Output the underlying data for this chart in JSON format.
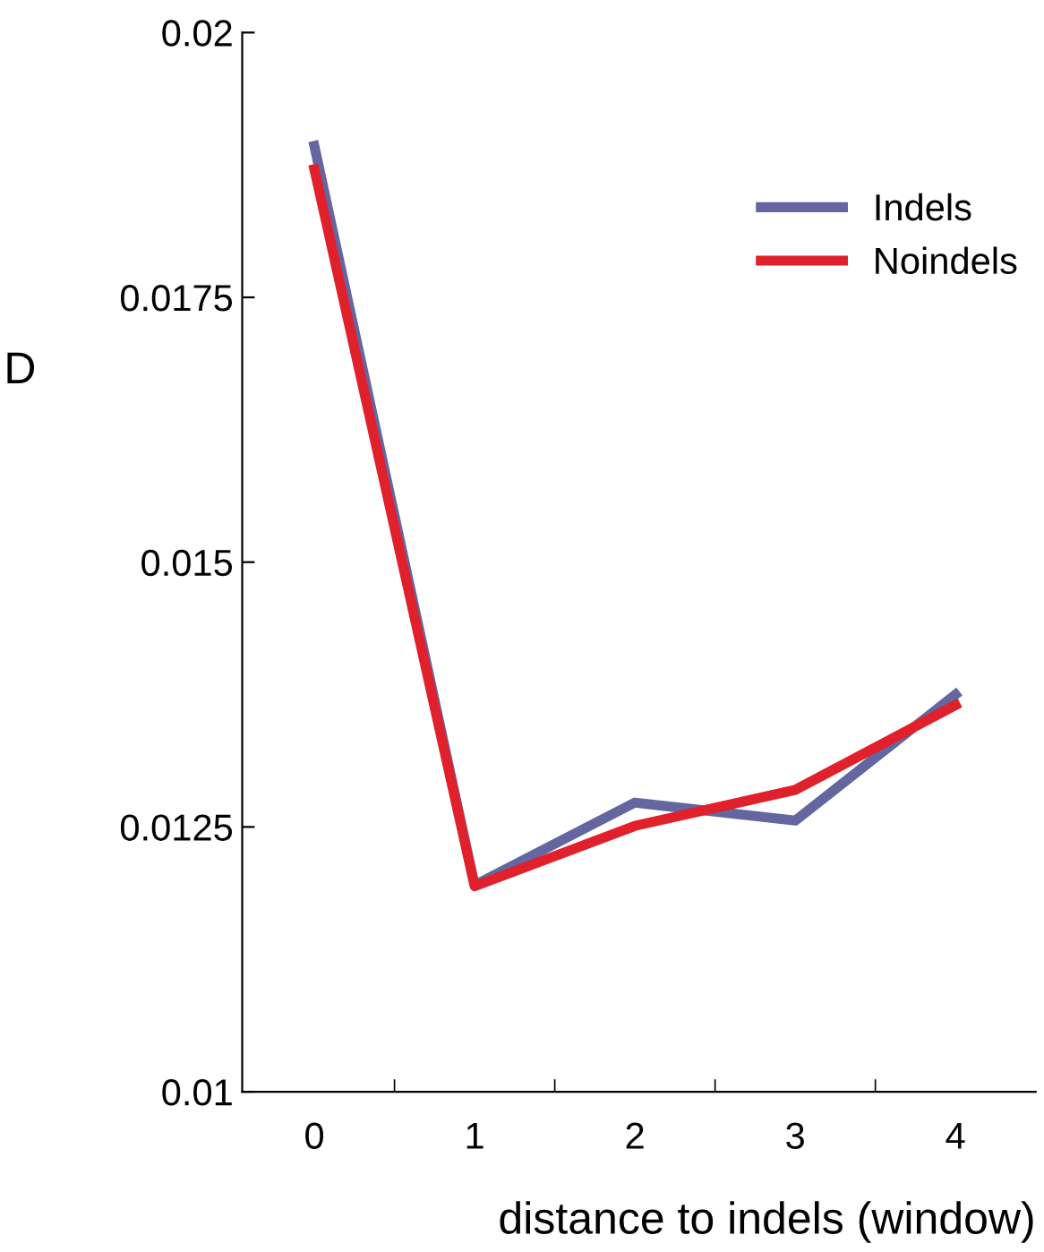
{
  "chart_data": {
    "type": "line",
    "xlabel": "distance to indels (window)",
    "ylabel": "D",
    "categories": [
      "0",
      "1",
      "2",
      "3",
      "4"
    ],
    "series": [
      {
        "name": "Indels",
        "color": "#6466a0",
        "values": [
          0.01893,
          0.01195,
          0.01273,
          0.01256,
          0.01375
        ]
      },
      {
        "name": "Noindels",
        "color": "#e0202a",
        "values": [
          0.01871,
          0.01194,
          0.01251,
          0.01285,
          0.01365
        ]
      }
    ],
    "ylim": [
      0.01,
      0.02
    ],
    "yticks": [
      0.01,
      0.0125,
      0.015,
      0.0175,
      0.02
    ],
    "grid": false,
    "legend": "top right",
    "marker": "none",
    "line_style": "solid"
  }
}
